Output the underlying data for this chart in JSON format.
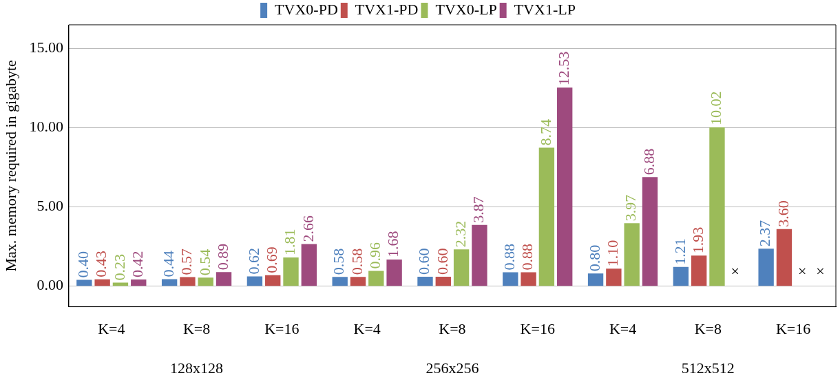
{
  "chart_data": {
    "type": "bar",
    "ylabel": "Max. memory required in gigabyte",
    "categories": [
      "K=4",
      "K=8",
      "K=16",
      "K=4",
      "K=8",
      "K=16",
      "K=4",
      "K=8",
      "K=16"
    ],
    "series": [
      {
        "name": "TVX0-PD",
        "color": "#4f81bd",
        "values": [
          0.4,
          0.44,
          0.62,
          0.58,
          0.6,
          0.88,
          0.8,
          1.21,
          2.37
        ],
        "value_labels": [
          "0.40",
          "0.44",
          "0.62",
          "0.58",
          "0.60",
          "0.88",
          "0.80",
          "1.21",
          "2.37"
        ]
      },
      {
        "name": "TVX1-PD",
        "color": "#c0504d",
        "values": [
          0.43,
          0.57,
          0.69,
          0.58,
          0.6,
          0.88,
          1.1,
          1.93,
          3.6
        ],
        "value_labels": [
          "0.43",
          "0.57",
          "0.69",
          "0.58",
          "0.60",
          "0.88",
          "1.10",
          "1.93",
          "3.60"
        ]
      },
      {
        "name": "TVX0-LP",
        "color": "#9bbb59",
        "values": [
          0.23,
          0.54,
          1.81,
          0.96,
          2.32,
          8.74,
          3.97,
          10.02,
          null
        ],
        "value_labels": [
          "0.23",
          "0.54",
          "1.81",
          "0.96",
          "2.32",
          "8.74",
          "3.97",
          "10.02",
          "×"
        ]
      },
      {
        "name": "TVX1-LP",
        "color": "#9e4a7e",
        "values": [
          0.42,
          0.89,
          2.66,
          1.68,
          3.87,
          12.53,
          6.88,
          null,
          null
        ],
        "value_labels": [
          "0.42",
          "0.89",
          "2.66",
          "1.68",
          "3.87",
          "12.53",
          "6.88",
          "×",
          "×"
        ]
      }
    ],
    "ylim": [
      -1.3,
      16.5
    ],
    "yticks": [
      {
        "value": 0,
        "label": "0.00"
      },
      {
        "value": 5,
        "label": "5.00"
      },
      {
        "value": 10,
        "label": "10.00"
      },
      {
        "value": 15,
        "label": "15.00"
      }
    ],
    "grid": "y",
    "legend": "top",
    "annotations": [
      "128x128",
      "256x256",
      "512x512"
    ]
  }
}
